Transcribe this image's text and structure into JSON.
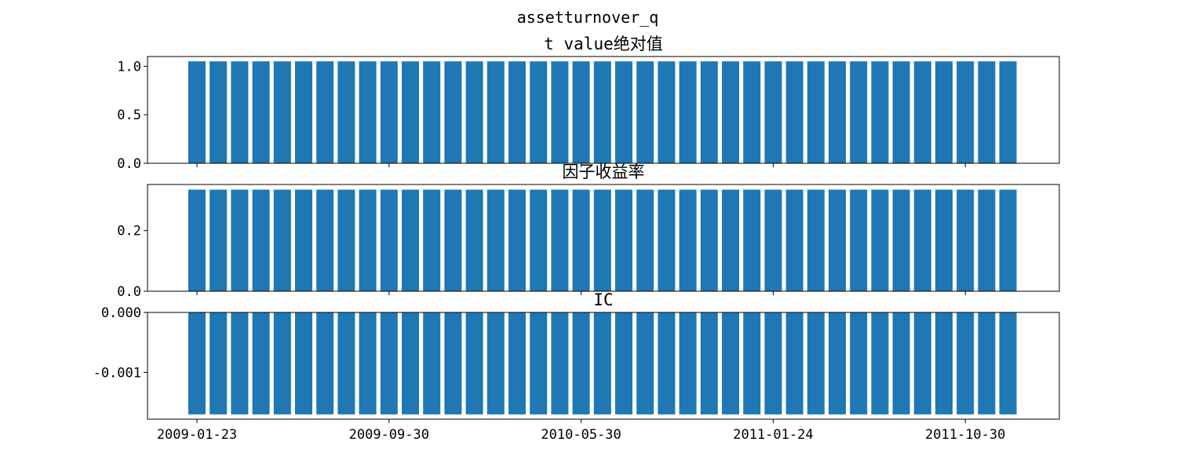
{
  "figure_title": "assetturnover_q",
  "x_tick_labels": [
    "2009-01-23",
    "2009-09-30",
    "2010-05-30",
    "2011-01-24",
    "2011-10-30"
  ],
  "bar_color": "#1f77b4",
  "chart_data": [
    {
      "type": "bar",
      "title": "t value绝对值",
      "categories_count": 39,
      "values": [
        1.05,
        1.05,
        1.05,
        1.05,
        1.05,
        1.05,
        1.05,
        1.05,
        1.05,
        1.05,
        1.05,
        1.05,
        1.05,
        1.05,
        1.05,
        1.05,
        1.05,
        1.05,
        1.05,
        1.05,
        1.05,
        1.05,
        1.05,
        1.05,
        1.05,
        1.05,
        1.05,
        1.05,
        1.05,
        1.05,
        1.05,
        1.05,
        1.05,
        1.05,
        1.05,
        1.05,
        1.05,
        1.05,
        1.05
      ],
      "ylim": [
        0,
        1.1
      ],
      "yticks": [
        0.0,
        0.5,
        1.0
      ],
      "ytick_labels": [
        "0.0",
        "0.5",
        "1.0"
      ],
      "x_ticks_shown": false
    },
    {
      "type": "bar",
      "title": "因子收益率",
      "categories_count": 39,
      "values": [
        0.335,
        0.335,
        0.335,
        0.335,
        0.335,
        0.335,
        0.335,
        0.335,
        0.335,
        0.335,
        0.335,
        0.335,
        0.335,
        0.335,
        0.335,
        0.335,
        0.335,
        0.335,
        0.335,
        0.335,
        0.335,
        0.335,
        0.335,
        0.335,
        0.335,
        0.335,
        0.335,
        0.335,
        0.335,
        0.335,
        0.335,
        0.335,
        0.335,
        0.335,
        0.335,
        0.335,
        0.335,
        0.335,
        0.335
      ],
      "ylim": [
        0,
        0.352
      ],
      "yticks": [
        0.0,
        0.2
      ],
      "ytick_labels": [
        "0.0",
        "0.2"
      ],
      "x_ticks_shown": false
    },
    {
      "type": "bar",
      "title": "IC",
      "categories_count": 39,
      "values": [
        -0.0017,
        -0.0017,
        -0.0017,
        -0.0017,
        -0.0017,
        -0.0017,
        -0.0017,
        -0.0017,
        -0.0017,
        -0.0017,
        -0.0017,
        -0.0017,
        -0.0017,
        -0.0017,
        -0.0017,
        -0.0017,
        -0.0017,
        -0.0017,
        -0.0017,
        -0.0017,
        -0.0017,
        -0.0017,
        -0.0017,
        -0.0017,
        -0.0017,
        -0.0017,
        -0.0017,
        -0.0017,
        -0.0017,
        -0.0017,
        -0.0017,
        -0.0017,
        -0.0017,
        -0.0017,
        -0.0017,
        -0.0017,
        -0.0017,
        -0.0017,
        -0.0017
      ],
      "ylim": [
        -0.00178,
        0
      ],
      "yticks": [
        0.0,
        -0.001
      ],
      "ytick_labels": [
        "0.000",
        "-0.001"
      ],
      "x_ticks_shown": true
    }
  ]
}
